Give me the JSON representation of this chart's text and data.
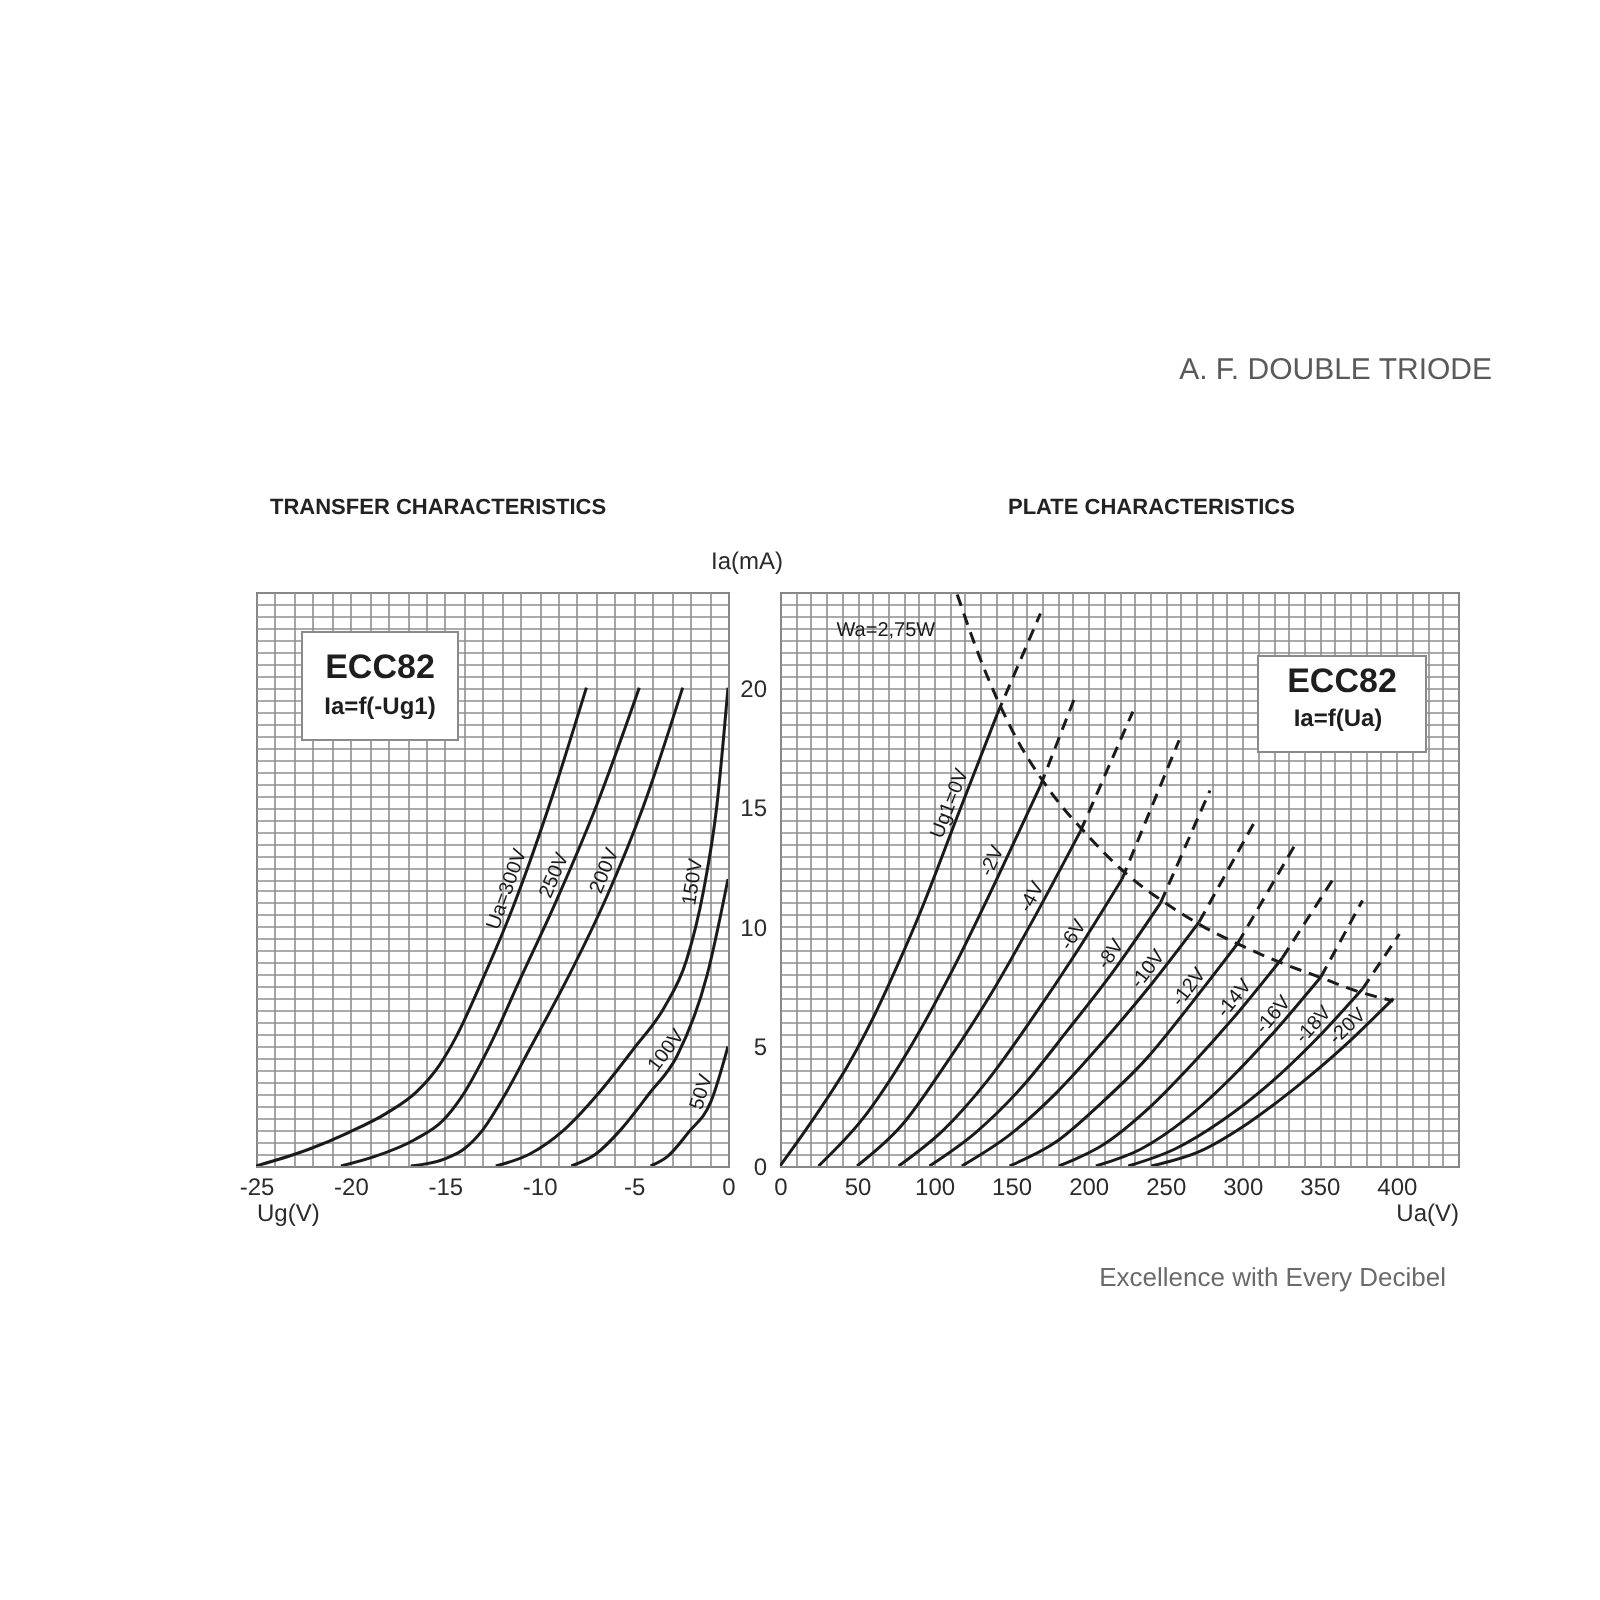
{
  "chart_data": [
    {
      "type": "line",
      "title": "TRANSFER CHARACTERISTICS",
      "xlabel": "Ug(V)",
      "xlim": [
        -25,
        0
      ],
      "ylim": [
        0,
        24
      ],
      "tick_labels": "x",
      "grid": true,
      "xticks": [
        -25,
        {
          "value": -24,
          "label": null
        },
        {
          "value": -23,
          "label": null
        },
        {
          "value": -22,
          "label": null
        },
        {
          "value": -21,
          "label": null
        },
        -20,
        {
          "value": -19,
          "label": null
        },
        {
          "value": -18,
          "label": null
        },
        {
          "value": -17,
          "label": null
        },
        {
          "value": -16,
          "label": null
        },
        -15,
        {
          "value": -14,
          "label": null
        },
        {
          "value": -13,
          "label": null
        },
        {
          "value": -12,
          "label": null
        },
        {
          "value": -11,
          "label": null
        },
        -10,
        {
          "value": -9,
          "label": null
        },
        {
          "value": -8,
          "label": null
        },
        {
          "value": -7,
          "label": null
        },
        {
          "value": -6,
          "label": null
        },
        -5,
        {
          "value": -4,
          "label": null
        },
        {
          "value": -3,
          "label": null
        },
        {
          "value": -2,
          "label": null
        },
        {
          "value": -1,
          "label": null
        },
        0
      ],
      "yticks": [
        0,
        {
          "value": 0.5,
          "label": null
        },
        {
          "value": 1,
          "label": null
        },
        {
          "value": 1.5,
          "label": null
        },
        {
          "value": 2,
          "label": null
        },
        {
          "value": 2.5,
          "label": null
        },
        {
          "value": 3,
          "label": null
        },
        {
          "value": 3.5,
          "label": null
        },
        {
          "value": 4,
          "label": null
        },
        {
          "value": 4.5,
          "label": null
        },
        5,
        {
          "value": 5.5,
          "label": null
        },
        {
          "value": 6,
          "label": null
        },
        {
          "value": 6.5,
          "label": null
        },
        {
          "value": 7,
          "label": null
        },
        {
          "value": 7.5,
          "label": null
        },
        {
          "value": 8,
          "label": null
        },
        {
          "value": 8.5,
          "label": null
        },
        {
          "value": 9,
          "label": null
        },
        {
          "value": 9.5,
          "label": null
        },
        10,
        {
          "value": 10.5,
          "label": null
        },
        {
          "value": 11,
          "label": null
        },
        {
          "value": 11.5,
          "label": null
        },
        {
          "value": 12,
          "label": null
        },
        {
          "value": 12.5,
          "label": null
        },
        {
          "value": 13,
          "label": null
        },
        {
          "value": 13.5,
          "label": null
        },
        {
          "value": 14,
          "label": null
        },
        {
          "value": 14.5,
          "label": null
        },
        15,
        {
          "value": 15.5,
          "label": null
        },
        {
          "value": 16,
          "label": null
        },
        {
          "value": 16.5,
          "label": null
        },
        {
          "value": 17,
          "label": null
        },
        {
          "value": 17.5,
          "label": null
        },
        {
          "value": 18,
          "label": null
        },
        {
          "value": 18.5,
          "label": null
        },
        {
          "value": 19,
          "label": null
        },
        {
          "value": 19.5,
          "label": null
        },
        20,
        {
          "value": 20.5,
          "label": null
        },
        {
          "value": 21,
          "label": null
        },
        {
          "value": 21.5,
          "label": null
        },
        {
          "value": 22,
          "label": null
        },
        {
          "value": 22.5,
          "label": null
        },
        {
          "value": 23,
          "label": null
        },
        {
          "value": 23.5,
          "label": null
        },
        {
          "value": 24,
          "label": null
        }
      ],
      "annotations": [
        "ECC82",
        "Ia=f(-Ug1)"
      ],
      "series": [
        {
          "name": "Ua=300V",
          "color": "#1a1a1a",
          "x": [
            -25,
            -22.2,
            -20.1,
            -18.1,
            -16.5,
            -15.3,
            -14.4,
            -13.0,
            -11.4,
            -9.5,
            -7.5
          ],
          "values": [
            0,
            0.7,
            1.4,
            2.2,
            3.1,
            4.2,
            5.4,
            7.8,
            10.8,
            15.0,
            20
          ]
        },
        {
          "name": "250V",
          "color": "#1a1a1a",
          "x": [
            -20.5,
            -18.7,
            -16.6,
            -15.1,
            -14.1,
            -12.7,
            -10.9,
            -9.2,
            -7.0,
            -4.7
          ],
          "values": [
            0,
            0.4,
            1.1,
            1.9,
            2.9,
            4.9,
            8.0,
            10.9,
            15.0,
            20
          ]
        },
        {
          "name": "200V",
          "color": "#1a1a1a",
          "x": [
            -16.8,
            -15.0,
            -14.0,
            -13.0,
            -11.8,
            -10.5,
            -8.4,
            -6.4,
            -4.5,
            -2.4
          ],
          "values": [
            0,
            0.3,
            0.7,
            1.5,
            3.0,
            4.9,
            8.0,
            11.3,
            15.0,
            20
          ]
        },
        {
          "name": "150V",
          "color": "#1a1a1a",
          "x": [
            -12.3,
            -10.5,
            -8.7,
            -6.9,
            -5.0,
            -3.4,
            -2.2,
            -1.3,
            -0.6,
            0
          ],
          "values": [
            0,
            0.5,
            1.5,
            3.0,
            4.9,
            6.6,
            8.6,
            11.5,
            15.0,
            20
          ]
        },
        {
          "name": "100V",
          "color": "#1a1a1a",
          "x": [
            -8.3,
            -7.0,
            -5.7,
            -4.2,
            -2.7,
            -1.1,
            0
          ],
          "values": [
            0,
            0.5,
            1.5,
            3.0,
            4.6,
            8.0,
            12.0
          ]
        },
        {
          "name": "50V",
          "color": "#1a1a1a",
          "x": [
            -4.1,
            -3.2,
            -2.1,
            -0.9,
            0
          ],
          "values": [
            0,
            0.4,
            1.4,
            2.7,
            5.0
          ]
        }
      ]
    },
    {
      "type": "line",
      "title": "PLATE CHARACTERISTICS",
      "xlabel": "Ua(V)",
      "ylabel": "Ia(mA)",
      "xlim": [
        0,
        440
      ],
      "ylim": [
        0,
        24
      ],
      "grid": true,
      "xticks": [
        0,
        {
          "value": 10,
          "label": null
        },
        {
          "value": 20,
          "label": null
        },
        {
          "value": 30,
          "label": null
        },
        {
          "value": 40,
          "label": null
        },
        50,
        {
          "value": 60,
          "label": null
        },
        {
          "value": 70,
          "label": null
        },
        {
          "value": 80,
          "label": null
        },
        {
          "value": 90,
          "label": null
        },
        100,
        {
          "value": 110,
          "label": null
        },
        {
          "value": 120,
          "label": null
        },
        {
          "value": 130,
          "label": null
        },
        {
          "value": 140,
          "label": null
        },
        150,
        {
          "value": 160,
          "label": null
        },
        {
          "value": 170,
          "label": null
        },
        {
          "value": 180,
          "label": null
        },
        {
          "value": 190,
          "label": null
        },
        200,
        {
          "value": 210,
          "label": null
        },
        {
          "value": 220,
          "label": null
        },
        {
          "value": 230,
          "label": null
        },
        {
          "value": 240,
          "label": null
        },
        250,
        {
          "value": 260,
          "label": null
        },
        {
          "value": 270,
          "label": null
        },
        {
          "value": 280,
          "label": null
        },
        {
          "value": 290,
          "label": null
        },
        300,
        {
          "value": 310,
          "label": null
        },
        {
          "value": 320,
          "label": null
        },
        {
          "value": 330,
          "label": null
        },
        {
          "value": 340,
          "label": null
        },
        350,
        {
          "value": 360,
          "label": null
        },
        {
          "value": 370,
          "label": null
        },
        {
          "value": 380,
          "label": null
        },
        {
          "value": 390,
          "label": null
        },
        400,
        {
          "value": 410,
          "label": null
        },
        {
          "value": 420,
          "label": null
        },
        {
          "value": 430,
          "label": null
        },
        {
          "value": 440,
          "label": null
        }
      ],
      "yticks": [
        0,
        {
          "value": 0.5,
          "label": null
        },
        {
          "value": 1,
          "label": null
        },
        {
          "value": 1.5,
          "label": null
        },
        {
          "value": 2,
          "label": null
        },
        {
          "value": 2.5,
          "label": null
        },
        {
          "value": 3,
          "label": null
        },
        {
          "value": 3.5,
          "label": null
        },
        {
          "value": 4,
          "label": null
        },
        {
          "value": 4.5,
          "label": null
        },
        5,
        {
          "value": 5.5,
          "label": null
        },
        {
          "value": 6,
          "label": null
        },
        {
          "value": 6.5,
          "label": null
        },
        {
          "value": 7,
          "label": null
        },
        {
          "value": 7.5,
          "label": null
        },
        {
          "value": 8,
          "label": null
        },
        {
          "value": 8.5,
          "label": null
        },
        {
          "value": 9,
          "label": null
        },
        {
          "value": 9.5,
          "label": null
        },
        10,
        {
          "value": 10.5,
          "label": null
        },
        {
          "value": 11,
          "label": null
        },
        {
          "value": 11.5,
          "label": null
        },
        {
          "value": 12,
          "label": null
        },
        {
          "value": 12.5,
          "label": null
        },
        {
          "value": 13,
          "label": null
        },
        {
          "value": 13.5,
          "label": null
        },
        {
          "value": 14,
          "label": null
        },
        {
          "value": 14.5,
          "label": null
        },
        15,
        {
          "value": 15.5,
          "label": null
        },
        {
          "value": 16,
          "label": null
        },
        {
          "value": 16.5,
          "label": null
        },
        {
          "value": 17,
          "label": null
        },
        {
          "value": 17.5,
          "label": null
        },
        {
          "value": 18,
          "label": null
        },
        {
          "value": 18.5,
          "label": null
        },
        {
          "value": 19,
          "label": null
        },
        {
          "value": 19.5,
          "label": null
        },
        20,
        {
          "value": 20.5,
          "label": null
        },
        {
          "value": 21,
          "label": null
        },
        {
          "value": 21.5,
          "label": null
        },
        {
          "value": 22,
          "label": null
        },
        {
          "value": 22.5,
          "label": null
        },
        {
          "value": 23,
          "label": null
        },
        {
          "value": 23.5,
          "label": null
        },
        {
          "value": 24,
          "label": null
        }
      ],
      "annotations": [
        "A. F. DOUBLE TRIODE",
        "ECC82",
        "Ia=f(Ua)",
        "Excellence with Every Decibel"
      ],
      "series": [
        {
          "name": "Ug1=0V",
          "color": "#1a1a1a",
          "x": [
            0,
            22,
            44,
            62,
            77,
            91,
            115,
            141
          ],
          "values": [
            0,
            2.0,
            4.2,
            6.4,
            8.5,
            10.6,
            14.6,
            18.9
          ]
        },
        {
          "color": "#1a1a1a",
          "line_style": "dashed",
          "x": [
            141,
            169
          ],
          "values": [
            18.9,
            23.1
          ]
        },
        {
          "name": "-2V",
          "color": "#1a1a1a",
          "x": [
            25,
            54,
            83,
            112,
            140,
            169
          ],
          "values": [
            0,
            2.0,
            4.8,
            8.2,
            11.9,
            15.9
          ]
        },
        {
          "color": "#1a1a1a",
          "line_style": "dashed",
          "x": [
            169,
            192
          ],
          "values": [
            15.9,
            19.7
          ]
        },
        {
          "name": "-4V",
          "color": "#1a1a1a",
          "x": [
            50,
            79,
            108,
            137,
            166,
            195
          ],
          "values": [
            0,
            1.7,
            4.3,
            7.2,
            10.5,
            14.0
          ]
        },
        {
          "color": "#1a1a1a",
          "line_style": "dashed",
          "x": [
            195,
            229
          ],
          "values": [
            14.0,
            19.0
          ]
        },
        {
          "name": "-6V",
          "color": "#1a1a1a",
          "x": [
            77,
            106,
            135,
            164,
            193,
            222
          ],
          "values": [
            0,
            1.5,
            3.6,
            6.2,
            9.0,
            12.0
          ]
        },
        {
          "color": "#1a1a1a",
          "line_style": "dashed",
          "x": [
            222,
            259
          ],
          "values": [
            12.0,
            17.8
          ]
        },
        {
          "name": "-8V",
          "color": "#1a1a1a",
          "x": [
            97,
            127,
            157,
            187,
            217,
            247
          ],
          "values": [
            0,
            1.4,
            3.3,
            5.7,
            8.2,
            11.0
          ]
        },
        {
          "color": "#1a1a1a",
          "line_style": "dashed",
          "x": [
            247,
            279
          ],
          "values": [
            11.0,
            15.7
          ]
        },
        {
          "name": "-10V",
          "color": "#1a1a1a",
          "x": [
            118,
            149,
            180,
            211,
            241,
            272
          ],
          "values": [
            0,
            1.3,
            3.1,
            5.3,
            7.6,
            10.2
          ]
        },
        {
          "color": "#1a1a1a",
          "line_style": "dashed",
          "x": [
            272,
            309
          ],
          "values": [
            10.2,
            14.5
          ]
        },
        {
          "name": "-12V",
          "color": "#1a1a1a",
          "x": [
            149,
            179,
            208,
            238,
            267,
            297
          ],
          "values": [
            0,
            1.0,
            2.6,
            4.5,
            6.8,
            9.3
          ]
        },
        {
          "color": "#1a1a1a",
          "line_style": "dashed",
          "x": [
            297,
            334
          ],
          "values": [
            9.3,
            13.4
          ]
        },
        {
          "name": "-14V",
          "color": "#1a1a1a",
          "x": [
            181,
            210,
            239,
            268,
            297,
            326
          ],
          "values": [
            0,
            0.9,
            2.4,
            4.3,
            6.4,
            8.7
          ]
        },
        {
          "color": "#1a1a1a",
          "line_style": "dashed",
          "x": [
            326,
            359
          ],
          "values": [
            8.7,
            12.0
          ]
        },
        {
          "name": "-16V",
          "color": "#1a1a1a",
          "x": [
            205,
            234,
            264,
            293,
            322,
            351
          ],
          "values": [
            0,
            0.7,
            2.0,
            3.7,
            5.7,
            7.9
          ]
        },
        {
          "color": "#1a1a1a",
          "line_style": "dashed",
          "x": [
            351,
            378
          ],
          "values": [
            7.9,
            11.1
          ]
        },
        {
          "name": "-18V",
          "color": "#1a1a1a",
          "x": [
            226,
            256,
            287,
            317,
            348,
            378
          ],
          "values": [
            0,
            0.7,
            1.9,
            3.4,
            5.3,
            7.4
          ]
        },
        {
          "color": "#1a1a1a",
          "line_style": "dashed",
          "x": [
            378,
            402
          ],
          "values": [
            7.4,
            9.7
          ]
        },
        {
          "name": "-20V",
          "color": "#1a1a1a",
          "x": [
            241,
            272,
            304,
            335,
            366,
            398
          ],
          "values": [
            0,
            0.6,
            1.8,
            3.3,
            5.0,
            7.0
          ]
        },
        {
          "name": "Wa=2,75W",
          "color": "#1a1a1a",
          "line_style": "dashed",
          "x": [
            115,
            130,
            150,
            175,
            200,
            225,
            250,
            275,
            300,
            325,
            350,
            375,
            398
          ],
          "values": [
            23.9,
            21.2,
            18.3,
            15.7,
            13.8,
            12.2,
            11.0,
            10.0,
            9.2,
            8.5,
            7.9,
            7.3,
            6.9
          ]
        }
      ]
    }
  ]
}
